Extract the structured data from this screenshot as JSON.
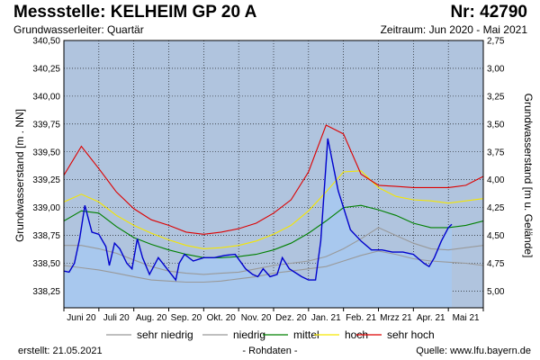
{
  "header": {
    "title": "Messstelle: KELHEIM GP 20 A",
    "number": "Nr: 42790",
    "aquifer": "Grundwasserleiter: Quartär",
    "period": "Zeitraum: Jun 2020 - Mai 2021"
  },
  "footer": {
    "created": "erstellt:  21.05.2021",
    "raw": "- Rohdaten -",
    "source": "Quelle: www.lfu.bayern.de"
  },
  "colors": {
    "background": "#b0c4de",
    "fill": "#a8c8ee",
    "measured": "#0000cc",
    "sehr_niedrig": "#999999",
    "niedrig": "#999999",
    "mittel": "#008000",
    "hoch": "#f5e600",
    "sehr_hoch": "#dd0000"
  },
  "chart_data": {
    "type": "line",
    "ylabel": "Grundwasserstand [m . NN]",
    "y2label": "Grundwasserstand [m u. Gelände]",
    "ylim": [
      338.1,
      340.5
    ],
    "yticks": [
      "338,25",
      "338,50",
      "338,75",
      "339,00",
      "339,25",
      "339,50",
      "339,75",
      "340,00",
      "340,25",
      "340,50"
    ],
    "y2ticks": [
      "5,00",
      "4,75",
      "4,50",
      "4,25",
      "4,00",
      "3,75",
      "3,50",
      "3,25",
      "3,00",
      "2,75"
    ],
    "xlim": [
      0,
      12
    ],
    "months": [
      "Juni 20",
      "Juli 20",
      "Aug. 20",
      "Sep. 20",
      "Okt. 20",
      "Nov. 20",
      "Dez. 20",
      "Jan. 21",
      "Feb. 21",
      "Mrzz 21",
      "Apr. 21",
      "Mai 21"
    ],
    "legend": [
      "sehr niedrig",
      "niedrig",
      "mittel",
      "hoch",
      "sehr hoch"
    ],
    "grid": true,
    "series": [
      {
        "name": "sehr niedrig",
        "x": [
          0,
          0.5,
          1,
          1.5,
          2,
          2.5,
          3,
          3.5,
          4,
          4.5,
          5,
          5.5,
          6,
          6.5,
          7,
          7.5,
          8,
          8.5,
          9,
          9.5,
          10,
          10.5,
          11,
          11.5,
          12
        ],
        "values": [
          338.48,
          338.46,
          338.44,
          338.41,
          338.38,
          338.35,
          338.34,
          338.33,
          338.33,
          338.34,
          338.36,
          338.38,
          338.41,
          338.43,
          338.45,
          338.47,
          338.52,
          338.57,
          338.61,
          338.58,
          338.54,
          338.52,
          338.51,
          338.5,
          338.48
        ]
      },
      {
        "name": "niedrig",
        "x": [
          0,
          0.5,
          1,
          1.5,
          2,
          2.5,
          3,
          3.5,
          4,
          4.5,
          5,
          5.5,
          6,
          6.5,
          7,
          7.5,
          8,
          8.5,
          9,
          9.5,
          10,
          10.5,
          11,
          11.5,
          12
        ],
        "values": [
          338.66,
          338.66,
          338.63,
          338.59,
          338.53,
          338.47,
          338.43,
          338.41,
          338.4,
          338.41,
          338.42,
          338.45,
          338.48,
          338.5,
          338.52,
          338.56,
          338.63,
          338.72,
          338.82,
          338.75,
          338.68,
          338.63,
          338.62,
          338.64,
          338.66
        ]
      },
      {
        "name": "mittel",
        "x": [
          0,
          0.5,
          1,
          1.5,
          2,
          2.5,
          3,
          3.5,
          4,
          4.5,
          5,
          5.5,
          6,
          6.5,
          7,
          7.5,
          8,
          8.5,
          9,
          9.5,
          10,
          10.5,
          11,
          11.5,
          12
        ],
        "values": [
          338.88,
          338.97,
          338.95,
          338.83,
          338.73,
          338.67,
          338.62,
          338.58,
          338.55,
          338.55,
          338.56,
          338.58,
          338.62,
          338.68,
          338.77,
          338.88,
          339.0,
          339.02,
          338.98,
          338.93,
          338.86,
          338.82,
          338.82,
          338.84,
          338.88
        ]
      },
      {
        "name": "hoch",
        "x": [
          0,
          0.5,
          1,
          1.5,
          2,
          2.5,
          3,
          3.5,
          4,
          4.5,
          5,
          5.5,
          6,
          6.5,
          7,
          7.5,
          8,
          8.5,
          9,
          9.5,
          10,
          10.5,
          11,
          11.5,
          12
        ],
        "values": [
          339.05,
          339.12,
          339.05,
          338.93,
          338.84,
          338.77,
          338.71,
          338.66,
          338.63,
          338.64,
          338.66,
          338.7,
          338.76,
          338.84,
          338.97,
          339.14,
          339.32,
          339.33,
          339.18,
          339.1,
          339.07,
          339.06,
          339.04,
          339.06,
          339.08
        ]
      },
      {
        "name": "sehr hoch",
        "x": [
          0,
          0.5,
          1,
          1.5,
          2,
          2.5,
          3,
          3.5,
          4,
          4.5,
          5,
          5.5,
          6,
          6.5,
          7,
          7.5,
          8,
          8.5,
          9,
          9.5,
          10,
          10.5,
          11,
          11.5,
          12
        ],
        "values": [
          339.29,
          339.55,
          339.35,
          339.14,
          338.99,
          338.89,
          338.84,
          338.78,
          338.76,
          338.78,
          338.81,
          338.86,
          338.95,
          339.07,
          339.32,
          339.74,
          339.66,
          339.3,
          339.2,
          339.19,
          339.18,
          339.18,
          339.18,
          339.2,
          339.28
        ]
      },
      {
        "name": "Messwert",
        "x": [
          0,
          0.15,
          0.3,
          0.45,
          0.6,
          0.8,
          1.0,
          1.2,
          1.3,
          1.45,
          1.6,
          1.8,
          1.95,
          2.1,
          2.25,
          2.45,
          2.7,
          2.95,
          3.2,
          3.3,
          3.45,
          3.7,
          4.0,
          4.3,
          4.6,
          4.9,
          5.2,
          5.4,
          5.55,
          5.7,
          5.9,
          6.1,
          6.25,
          6.45,
          6.6,
          6.8,
          7.0,
          7.2,
          7.35,
          7.55,
          7.85,
          7.95,
          8.2,
          8.5,
          8.8,
          9.1,
          9.4,
          9.7,
          10.0,
          10.3,
          10.45,
          10.6,
          10.8,
          11.0,
          11.1
        ],
        "values": [
          338.43,
          338.42,
          338.5,
          338.72,
          339.02,
          338.78,
          338.76,
          338.65,
          338.48,
          338.68,
          338.63,
          338.5,
          338.45,
          338.72,
          338.55,
          338.4,
          338.55,
          338.45,
          338.35,
          338.5,
          338.58,
          338.52,
          338.55,
          338.55,
          338.57,
          338.58,
          338.45,
          338.4,
          338.38,
          338.45,
          338.38,
          338.4,
          338.55,
          338.45,
          338.42,
          338.38,
          338.35,
          338.35,
          338.7,
          339.62,
          339.15,
          339.05,
          338.8,
          338.7,
          338.62,
          338.62,
          338.6,
          338.6,
          338.58,
          338.5,
          338.47,
          338.55,
          338.7,
          338.82,
          338.85
        ]
      }
    ]
  }
}
